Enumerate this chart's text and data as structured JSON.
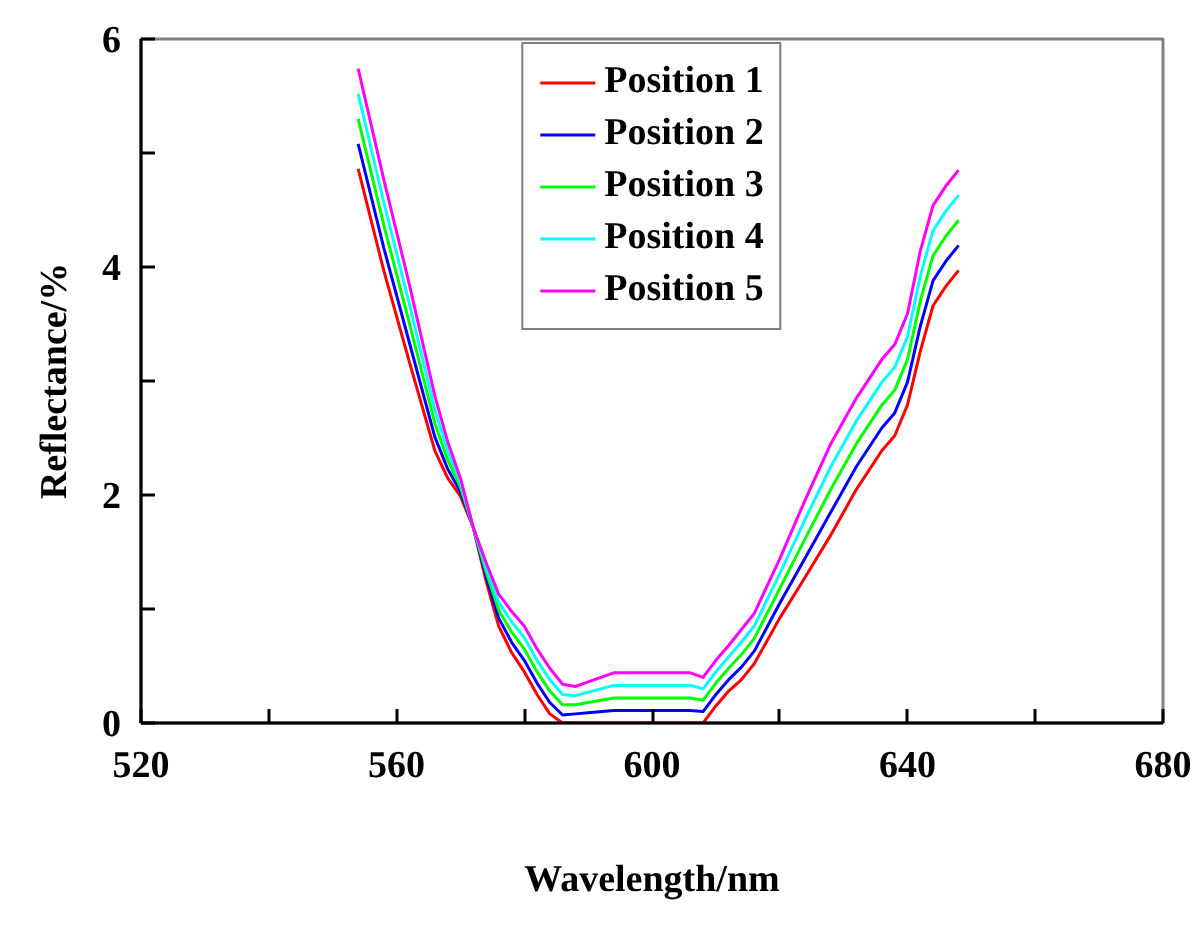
{
  "chart_data": {
    "type": "line",
    "xlabel": "Wavelength/nm",
    "ylabel": "Reflectance/%",
    "x": [
      554,
      558,
      562,
      566,
      568,
      570,
      572,
      574,
      576,
      578,
      580,
      582,
      584,
      586,
      588,
      590,
      594,
      598,
      602,
      606,
      608,
      610,
      612,
      614,
      616,
      618,
      620,
      624,
      628,
      632,
      636,
      638,
      640,
      642,
      644,
      646,
      648
    ],
    "series": [
      {
        "name": "Position 1",
        "color": "#ff0000",
        "values": [
          4.86,
          3.97,
          3.17,
          2.39,
          2.15,
          1.99,
          1.72,
          1.25,
          0.85,
          0.62,
          0.45,
          0.25,
          0.08,
          0,
          0,
          0,
          0,
          0,
          0,
          0,
          0,
          0.15,
          0.28,
          0.38,
          0.52,
          0.72,
          0.92,
          1.28,
          1.65,
          2.05,
          2.39,
          2.52,
          2.79,
          3.26,
          3.66,
          3.83,
          3.97
        ]
      },
      {
        "name": "Position 2",
        "color": "#0000ff",
        "values": [
          5.08,
          4.17,
          3.34,
          2.51,
          2.23,
          2.03,
          1.72,
          1.29,
          0.92,
          0.71,
          0.55,
          0.35,
          0.18,
          0.07,
          0.08,
          0.09,
          0.11,
          0.11,
          0.11,
          0.11,
          0.1,
          0.25,
          0.38,
          0.49,
          0.63,
          0.84,
          1.05,
          1.45,
          1.85,
          2.25,
          2.59,
          2.72,
          2.99,
          3.48,
          3.88,
          4.05,
          4.19
        ]
      },
      {
        "name": "Position 3",
        "color": "#00ff00",
        "values": [
          5.3,
          4.37,
          3.51,
          2.63,
          2.31,
          2.07,
          1.72,
          1.33,
          0.99,
          0.8,
          0.65,
          0.45,
          0.28,
          0.16,
          0.16,
          0.18,
          0.22,
          0.22,
          0.22,
          0.22,
          0.2,
          0.35,
          0.48,
          0.6,
          0.74,
          0.96,
          1.18,
          1.62,
          2.05,
          2.45,
          2.79,
          2.92,
          3.19,
          3.7,
          4.1,
          4.27,
          4.41
        ]
      },
      {
        "name": "Position 4",
        "color": "#00ffff",
        "values": [
          5.52,
          4.57,
          3.68,
          2.75,
          2.39,
          2.11,
          1.72,
          1.37,
          1.06,
          0.89,
          0.75,
          0.55,
          0.38,
          0.25,
          0.24,
          0.27,
          0.33,
          0.33,
          0.33,
          0.33,
          0.3,
          0.45,
          0.58,
          0.71,
          0.85,
          1.08,
          1.31,
          1.79,
          2.25,
          2.65,
          2.99,
          3.12,
          3.39,
          3.92,
          4.32,
          4.49,
          4.63
        ]
      },
      {
        "name": "Position 5",
        "color": "#ff00ff",
        "values": [
          5.74,
          4.77,
          3.85,
          2.87,
          2.47,
          2.15,
          1.72,
          1.41,
          1.13,
          0.98,
          0.85,
          0.65,
          0.48,
          0.34,
          0.32,
          0.36,
          0.44,
          0.44,
          0.44,
          0.44,
          0.4,
          0.55,
          0.68,
          0.82,
          0.96,
          1.2,
          1.44,
          1.96,
          2.45,
          2.85,
          3.19,
          3.32,
          3.59,
          4.14,
          4.54,
          4.71,
          4.85
        ]
      }
    ],
    "xlim": [
      520,
      680
    ],
    "xticks": [
      520,
      {
        "value": 540,
        "label": null
      },
      560,
      {
        "value": 580,
        "label": null
      },
      600,
      {
        "value": 620,
        "label": null
      },
      640,
      {
        "value": 660,
        "label": null
      },
      680
    ],
    "ylim": [
      0,
      6
    ],
    "yticks": [
      0,
      {
        "value": 1,
        "label": null
      },
      2,
      {
        "value": 3,
        "label": null
      },
      4,
      {
        "value": 5,
        "label": null
      },
      6
    ],
    "grid": false,
    "legend": "top center",
    "marker": "none",
    "line_style": "solid"
  }
}
